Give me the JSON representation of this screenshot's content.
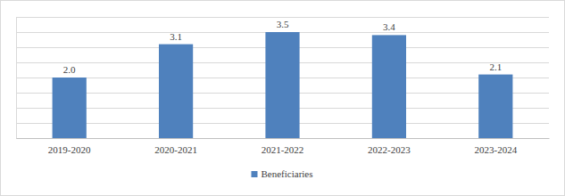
{
  "chart_data": {
    "type": "bar",
    "categories": [
      "2019-2020",
      "2020-2021",
      "2021-2022",
      "2022-2023",
      "2023-2024"
    ],
    "series": [
      {
        "name": "Beneficiaries",
        "color": "#4f81bd",
        "values": [
          2.0,
          3.1,
          3.5,
          3.4,
          2.1
        ],
        "value_labels": [
          "2.0",
          "3.1",
          "3.5",
          "3.4",
          "2.1"
        ]
      }
    ],
    "ylim": [
      0,
      4
    ],
    "yticks": [
      0,
      0.5,
      1,
      1.5,
      2,
      2.5,
      3,
      3.5,
      4
    ],
    "grid": true,
    "data_labels": true,
    "tick_labels": "x",
    "legend": "bottom"
  }
}
